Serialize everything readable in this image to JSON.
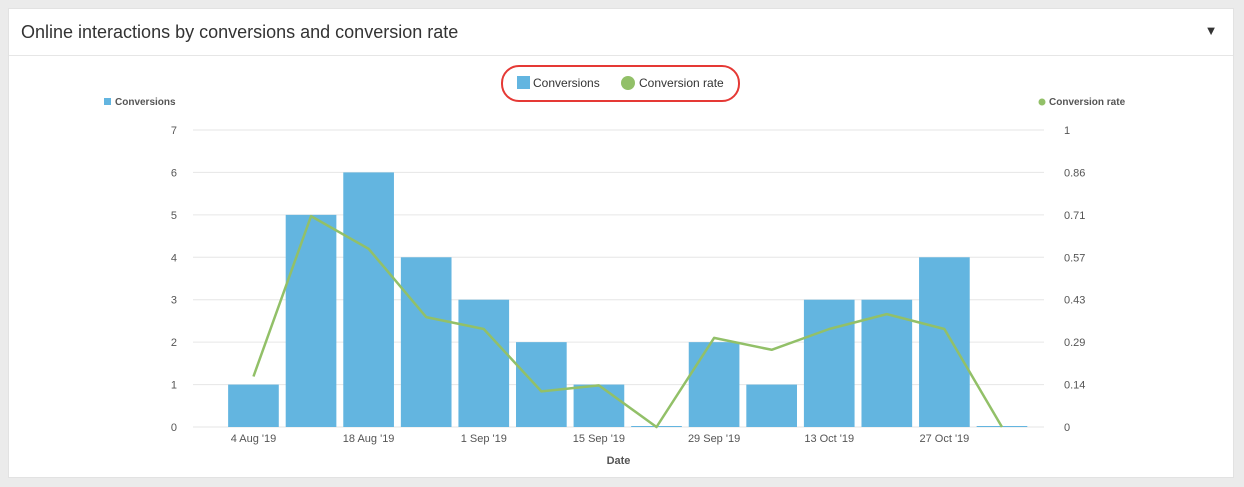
{
  "panel": {
    "title": "Online interactions by conversions and conversion rate",
    "toggle_icon": "caret-down-icon",
    "toggle_glyph": "▼"
  },
  "legend": {
    "highlight_color": "#e53935",
    "items": [
      {
        "label": "Conversions",
        "marker": "square",
        "color": "#63b5e0"
      },
      {
        "label": "Conversion rate",
        "marker": "circle",
        "color": "#92c068"
      }
    ]
  },
  "chart_data": {
    "type": "bar",
    "x_title": "Date",
    "x_tick_labels": [
      "4 Aug '19",
      "18 Aug '19",
      "1 Sep '19",
      "15 Sep '19",
      "29 Sep '19",
      "13 Oct '19",
      "27 Oct '19"
    ],
    "categories": [
      "4 Aug '19",
      "11 Aug '19",
      "18 Aug '19",
      "25 Aug '19",
      "1 Sep '19",
      "8 Sep '19",
      "15 Sep '19",
      "22 Sep '19",
      "29 Sep '19",
      "6 Oct '19",
      "13 Oct '19",
      "20 Oct '19",
      "27 Oct '19",
      "3 Nov '19"
    ],
    "series": [
      {
        "name": "Conversions",
        "type": "bar",
        "axis": "left",
        "color": "#63b5e0",
        "values": [
          1,
          5,
          6,
          4,
          3,
          2,
          1,
          0,
          2,
          1,
          3,
          3,
          4,
          0
        ]
      },
      {
        "name": "Conversion rate",
        "type": "line",
        "axis": "right",
        "color": "#92c068",
        "values": [
          0.17,
          0.71,
          0.6,
          0.37,
          0.33,
          0.12,
          0.14,
          0,
          0.3,
          0.26,
          0.33,
          0.38,
          0.33,
          0
        ]
      }
    ],
    "y_left": {
      "title": "Conversions",
      "min": 0,
      "max": 7,
      "ticks": [
        "0",
        "1",
        "2",
        "3",
        "4",
        "5",
        "6",
        "7"
      ]
    },
    "y_right": {
      "title": "Conversion rate",
      "min": 0,
      "max": 1,
      "ticks": [
        "0",
        "0.14",
        "0.29",
        "0.43",
        "0.57",
        "0.71",
        "0.86",
        "1"
      ]
    },
    "grid": true,
    "legend_position": "top-center"
  }
}
